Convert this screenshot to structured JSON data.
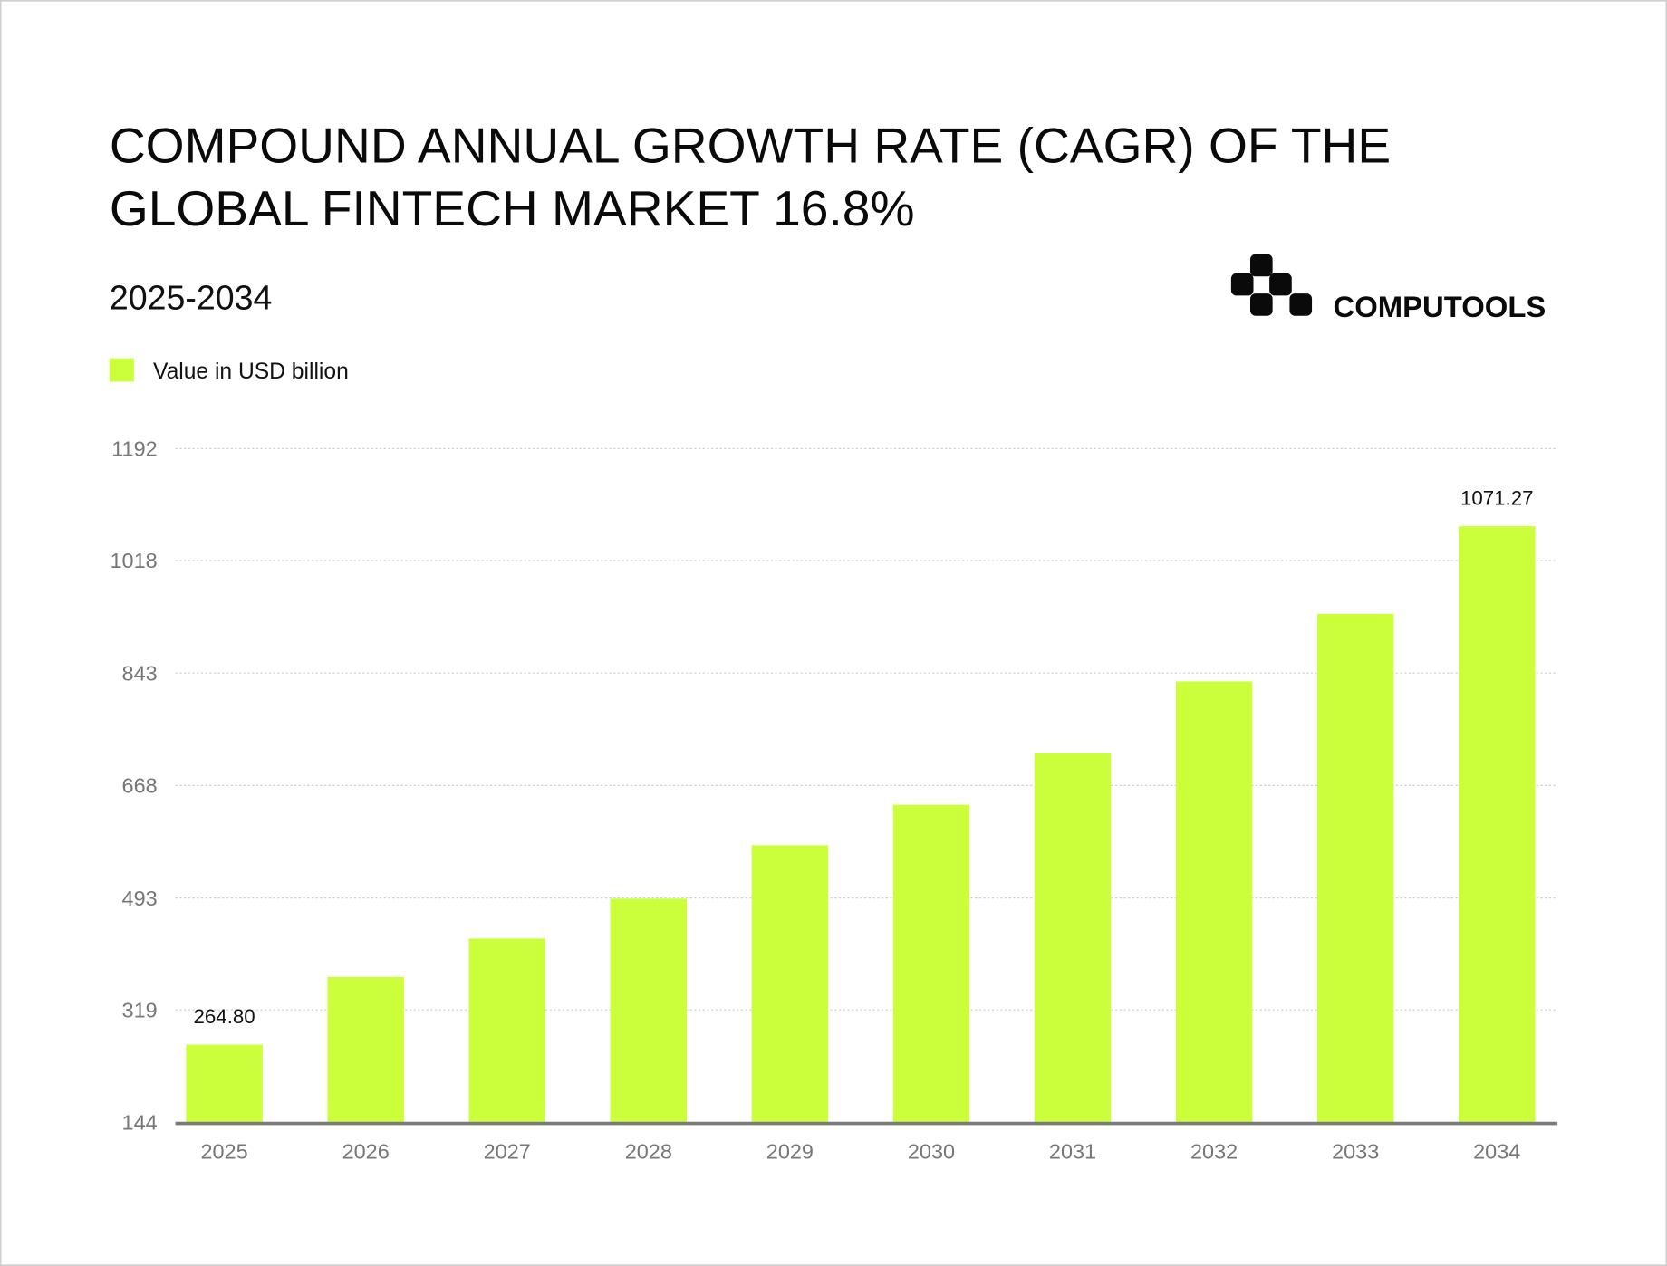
{
  "title_line1": "COMPOUND ANNUAL GROWTH RATE (CAGR) OF THE",
  "title_line2": "GLOBAL FINTECH MARKET 16.8%",
  "subtitle": "2025-2034",
  "logo_text": "COMPUTOOLS",
  "chart_data": {
    "type": "bar",
    "title": "COMPOUND ANNUAL GROWTH RATE (CAGR) OF THE GLOBAL FINTECH MARKET 16.8%",
    "subtitle": "2025-2034",
    "categories": [
      "2025",
      "2026",
      "2027",
      "2028",
      "2029",
      "2030",
      "2031",
      "2032",
      "2033",
      "2034"
    ],
    "series": [
      {
        "name": "Value in USD billion",
        "values": [
          264.8,
          370,
          430,
          492,
          575,
          638,
          718,
          830,
          935,
          1071.27
        ]
      }
    ],
    "data_labels": {
      "0": "264.80",
      "9": "1071.27"
    },
    "yticks": [
      "144",
      "319",
      "493",
      "668",
      "843",
      "1018",
      "1192"
    ],
    "ylim": [
      144,
      1192
    ],
    "grid": true,
    "legend": "top-left",
    "bar_color": "#ccff3b"
  }
}
